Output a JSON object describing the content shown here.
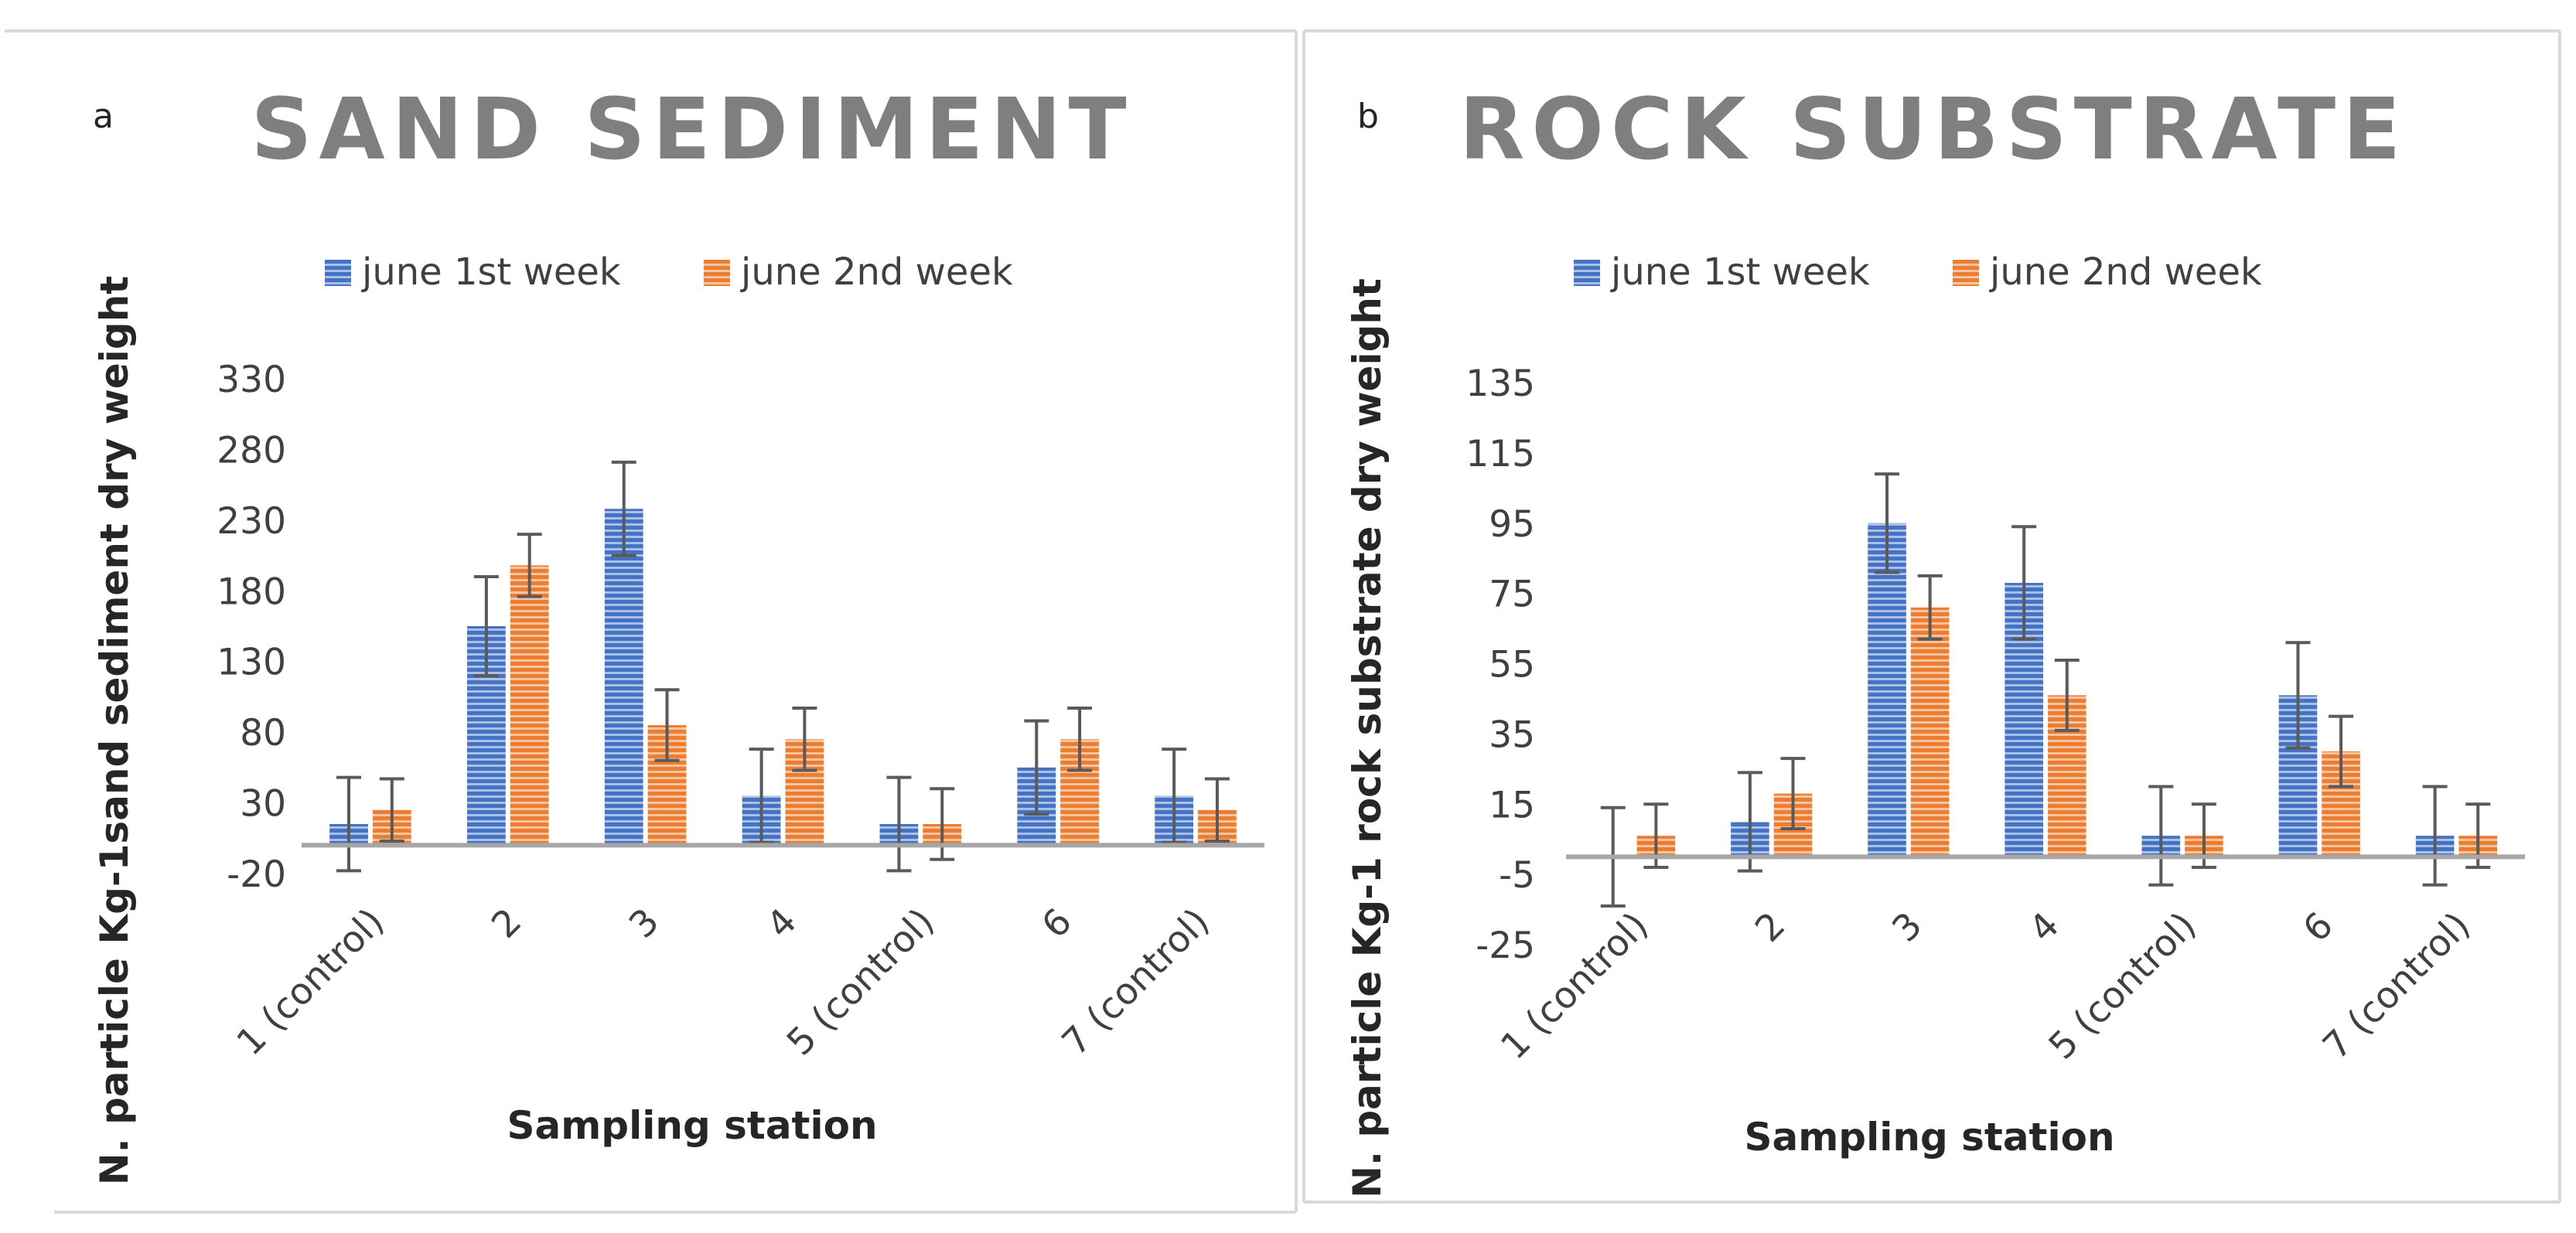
{
  "colors": {
    "series1": "#4472C4",
    "series2": "#ED7D31",
    "title": "#7F7F7F",
    "axis": "#A6A6A6",
    "tick_text": "#404040",
    "label_text": "#262626",
    "error_bar": "#5A5A5A",
    "panel_border": "#D9D9D9"
  },
  "chart_data": [
    {
      "type": "bar",
      "panel_letter": "a",
      "title": "SAND SEDIMENT",
      "xlabel": "Sampling station",
      "ylabel": "N. particle Kg-1sand sediment dry weight",
      "categories": [
        "1 (control)",
        "2",
        "3",
        "4",
        "5 (control)",
        "6",
        "7 (control)"
      ],
      "yticks": [
        330,
        280,
        230,
        180,
        130,
        80,
        30,
        -20
      ],
      "ylim": [
        -20,
        330
      ],
      "baseline": 0,
      "legend_position": "top",
      "series": [
        {
          "name": "june 1st week",
          "values": [
            15,
            155,
            238,
            35,
            15,
            55,
            35
          ],
          "errors": [
            33,
            35,
            33,
            33,
            33,
            33,
            33
          ]
        },
        {
          "name": "june 2nd week",
          "values": [
            25,
            198,
            85,
            75,
            15,
            75,
            25
          ],
          "errors": [
            22,
            22,
            25,
            22,
            25,
            22,
            22
          ]
        }
      ]
    },
    {
      "type": "bar",
      "panel_letter": "b",
      "title": "ROCK SUBSTRATE",
      "xlabel": "Sampling station",
      "ylabel": "N. particle Kg-1 rock substrate dry weight",
      "categories": [
        "1 (control)",
        "2",
        "3",
        "4",
        "5 (control)",
        "6",
        "7 (control)"
      ],
      "yticks": [
        135,
        115,
        95,
        75,
        55,
        35,
        15,
        -5,
        -25
      ],
      "ylim": [
        -25,
        135
      ],
      "baseline": 0,
      "legend_position": "top",
      "series": [
        {
          "name": "june 1st week",
          "values": [
            0,
            10,
            95,
            78,
            6,
            46,
            6
          ],
          "errors": [
            14,
            14,
            14,
            16,
            14,
            15,
            14
          ]
        },
        {
          "name": "june 2nd week",
          "values": [
            6,
            18,
            71,
            46,
            6,
            30,
            6
          ],
          "errors": [
            9,
            10,
            9,
            10,
            9,
            10,
            9
          ]
        }
      ]
    }
  ]
}
